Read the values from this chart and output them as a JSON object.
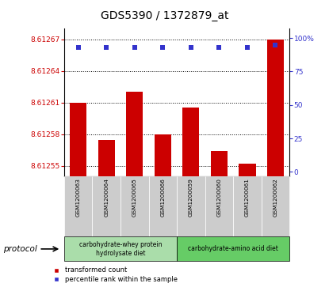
{
  "title": "GDS5390 / 1372879_at",
  "samples": [
    "GSM1200063",
    "GSM1200064",
    "GSM1200065",
    "GSM1200066",
    "GSM1200059",
    "GSM1200060",
    "GSM1200061",
    "GSM1200062"
  ],
  "bar_values": [
    8.61261,
    8.612575,
    8.61262,
    8.61258,
    8.612605,
    8.612564,
    8.612552,
    8.61267
  ],
  "percentile_values": [
    93,
    93,
    93,
    93,
    93,
    93,
    93,
    95
  ],
  "ylim_left": [
    8.61254,
    8.61268
  ],
  "ylim_right": [
    -3.5,
    107
  ],
  "yticks_left": [
    8.61255,
    8.61258,
    8.61261,
    8.61264,
    8.61267
  ],
  "yticks_right": [
    0,
    25,
    50,
    75,
    100
  ],
  "bar_color": "#cc0000",
  "dot_color": "#3333cc",
  "bar_width": 0.6,
  "group1_color": "#aaddaa",
  "group2_color": "#66cc66",
  "group1_label": "carbohydrate-whey protein\nhydrolysate diet",
  "group2_label": "carbohydrate-amino acid diet",
  "protocol_label": "protocol",
  "legend_bar_label": "transformed count",
  "legend_dot_label": "percentile rank within the sample",
  "background_color": "#ffffff",
  "tick_color_left": "#cc0000",
  "tick_color_right": "#3333cc",
  "sample_box_color": "#cccccc",
  "title_fontsize": 10
}
